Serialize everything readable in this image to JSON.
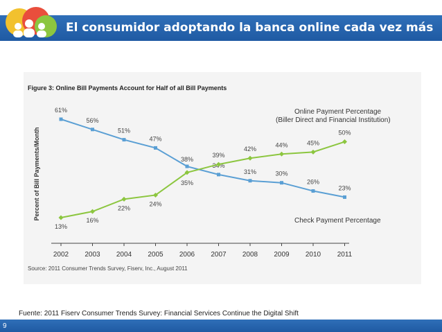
{
  "slide": {
    "title": "El consumidor adoptando la banca online cada vez más",
    "source_note": "Fuente: 2011 Fiserv Consumer Trends Survey:  Financial Services Continue the Digital Shift",
    "page_number": "9"
  },
  "colors": {
    "header": "#2a66b2",
    "online_series": "#8cc63f",
    "check_series": "#5a9fd4"
  },
  "chart_data": {
    "type": "line",
    "title": "Figure 3: Online Bill Payments Account for Half of all Bill Payments",
    "ylabel": "Percent of Bill Payments/Month",
    "xlabel": "",
    "categories": [
      "2002",
      "2003",
      "2004",
      "2005",
      "2006",
      "2007",
      "2008",
      "2009",
      "2010",
      "2011"
    ],
    "ylim": [
      13,
      61
    ],
    "series": [
      {
        "name": "Online Payment Percentage",
        "label_line1": "Online Payment Percentage",
        "label_line2": "(Biller Direct and Financial Institution)",
        "values": [
          13,
          16,
          22,
          24,
          35,
          39,
          42,
          44,
          45,
          50
        ],
        "labels": [
          "13%",
          "16%",
          "22%",
          "24%",
          "35%",
          "39%",
          "42%",
          "44%",
          "45%",
          "50%"
        ]
      },
      {
        "name": "Check Payment Percentage",
        "label_line1": "Check Payment Percentage",
        "values": [
          61,
          56,
          51,
          47,
          38,
          34,
          31,
          30,
          26,
          23
        ],
        "labels": [
          "61%",
          "56%",
          "51%",
          "47%",
          "38%",
          "34%",
          "31%",
          "30%",
          "26%",
          "23%"
        ]
      }
    ],
    "source": "Source: 2011 Consumer Trends Survey, Fiserv, Inc., August 2011"
  }
}
